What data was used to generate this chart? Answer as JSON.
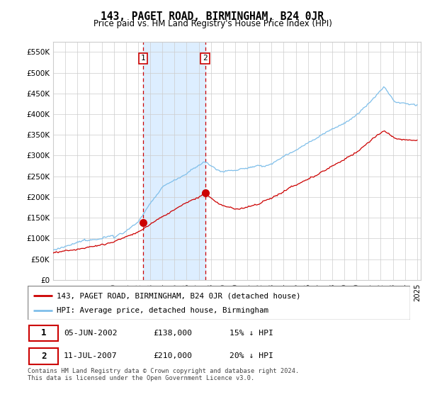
{
  "title": "143, PAGET ROAD, BIRMINGHAM, B24 0JR",
  "subtitle": "Price paid vs. HM Land Registry's House Price Index (HPI)",
  "ylim": [
    0,
    575000
  ],
  "yticks": [
    0,
    50000,
    100000,
    150000,
    200000,
    250000,
    300000,
    350000,
    400000,
    450000,
    500000,
    550000
  ],
  "xlim_start": 1995.0,
  "xlim_end": 2025.3,
  "sale1_date": 2002.43,
  "sale1_price": 138000,
  "sale2_date": 2007.53,
  "sale2_price": 210000,
  "sale1_text": "05-JUN-2002",
  "sale1_amount": "£138,000",
  "sale1_hpi": "15% ↓ HPI",
  "sale2_text": "11-JUL-2007",
  "sale2_amount": "£210,000",
  "sale2_hpi": "20% ↓ HPI",
  "legend_line1": "143, PAGET ROAD, BIRMINGHAM, B24 0JR (detached house)",
  "legend_line2": "HPI: Average price, detached house, Birmingham",
  "footer": "Contains HM Land Registry data © Crown copyright and database right 2024.\nThis data is licensed under the Open Government Licence v3.0.",
  "hpi_color": "#7fbfea",
  "price_color": "#cc0000",
  "shade_color": "#ddeeff",
  "bg_color": "#ffffff",
  "grid_color": "#cccccc"
}
